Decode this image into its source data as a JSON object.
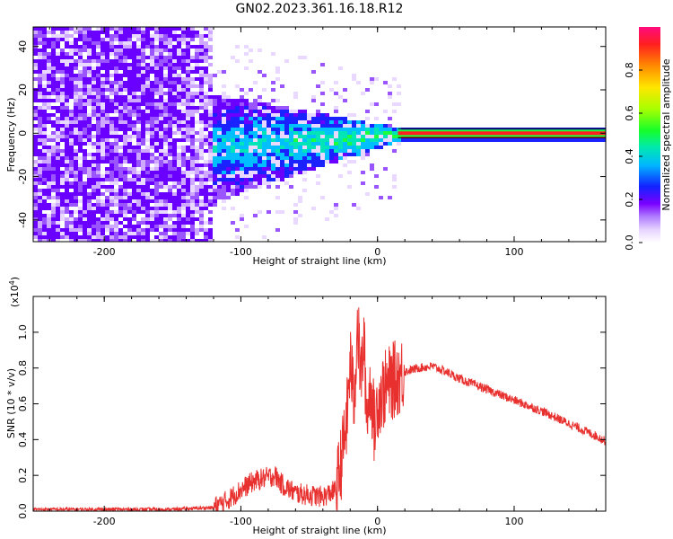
{
  "title": "GN02.2023.361.16.18.R12",
  "colors": {
    "snr_line": "#e8312f",
    "colormap": [
      "#ffffff",
      "#e9d8ff",
      "#cfa9ff",
      "#9a55ff",
      "#6a00ff",
      "#1a22ff",
      "#00bfff",
      "#00e5b8",
      "#1cff3c",
      "#b8ff00",
      "#ffe600",
      "#ff8a00",
      "#ff1f1f",
      "#ff0a7a"
    ]
  },
  "chart_data": [
    {
      "type": "heatmap",
      "title": "GN02.2023.361.16.18.R12",
      "xlabel": "Height of straight line (km)",
      "ylabel": "Frequency (Hz)",
      "xlim": [
        -252,
        167
      ],
      "ylim": [
        -50,
        49
      ],
      "xticks": [
        -200,
        -100,
        0,
        100
      ],
      "yticks": [
        -40,
        -20,
        0,
        20,
        40
      ],
      "colorbar": {
        "label": "Normalized spectral amplitude",
        "range": [
          0,
          1
        ],
        "ticks": [
          "0.0",
          "0.2",
          "0.4",
          "0.6",
          "0.8"
        ]
      },
      "features": {
        "noise_region_x": [
          -252,
          -122
        ],
        "signal_spread_x": [
          -122,
          15
        ],
        "carrier_line_x": [
          15,
          167
        ],
        "carrier_frequency": 0
      }
    },
    {
      "type": "line",
      "xlabel": "Height of straight line (km)",
      "ylabel": "SNR (10 * v/v)",
      "y_scale_label": "(x10",
      "y_scale_exponent": "4",
      "xlim": [
        -252,
        167
      ],
      "ylim": [
        0,
        1.2
      ],
      "xticks": [
        -200,
        -100,
        0,
        100
      ],
      "yticks": [
        "0.0",
        "0.2",
        "0.4",
        "0.6",
        "0.8",
        "1.0"
      ],
      "series": [
        {
          "x": [
            -252,
            -200,
            -150,
            -120,
            -110,
            -100,
            -90,
            -80,
            -75,
            -70,
            -60,
            -50,
            -40,
            -30,
            -25,
            -22,
            -20,
            -17,
            -15,
            -12,
            -10,
            -8,
            -5,
            -2,
            0,
            5,
            10,
            15,
            20,
            30,
            40,
            50,
            60,
            80,
            100,
            120,
            140,
            160,
            167
          ],
          "y": [
            0.01,
            0.01,
            0.01,
            0.02,
            0.06,
            0.12,
            0.17,
            0.19,
            0.2,
            0.15,
            0.1,
            0.09,
            0.08,
            0.12,
            0.35,
            0.55,
            0.85,
            0.6,
            1.05,
            0.75,
            0.95,
            0.55,
            0.7,
            0.45,
            0.62,
            0.68,
            0.72,
            0.75,
            0.78,
            0.8,
            0.81,
            0.78,
            0.74,
            0.68,
            0.62,
            0.56,
            0.49,
            0.42,
            0.39
          ]
        }
      ]
    }
  ]
}
